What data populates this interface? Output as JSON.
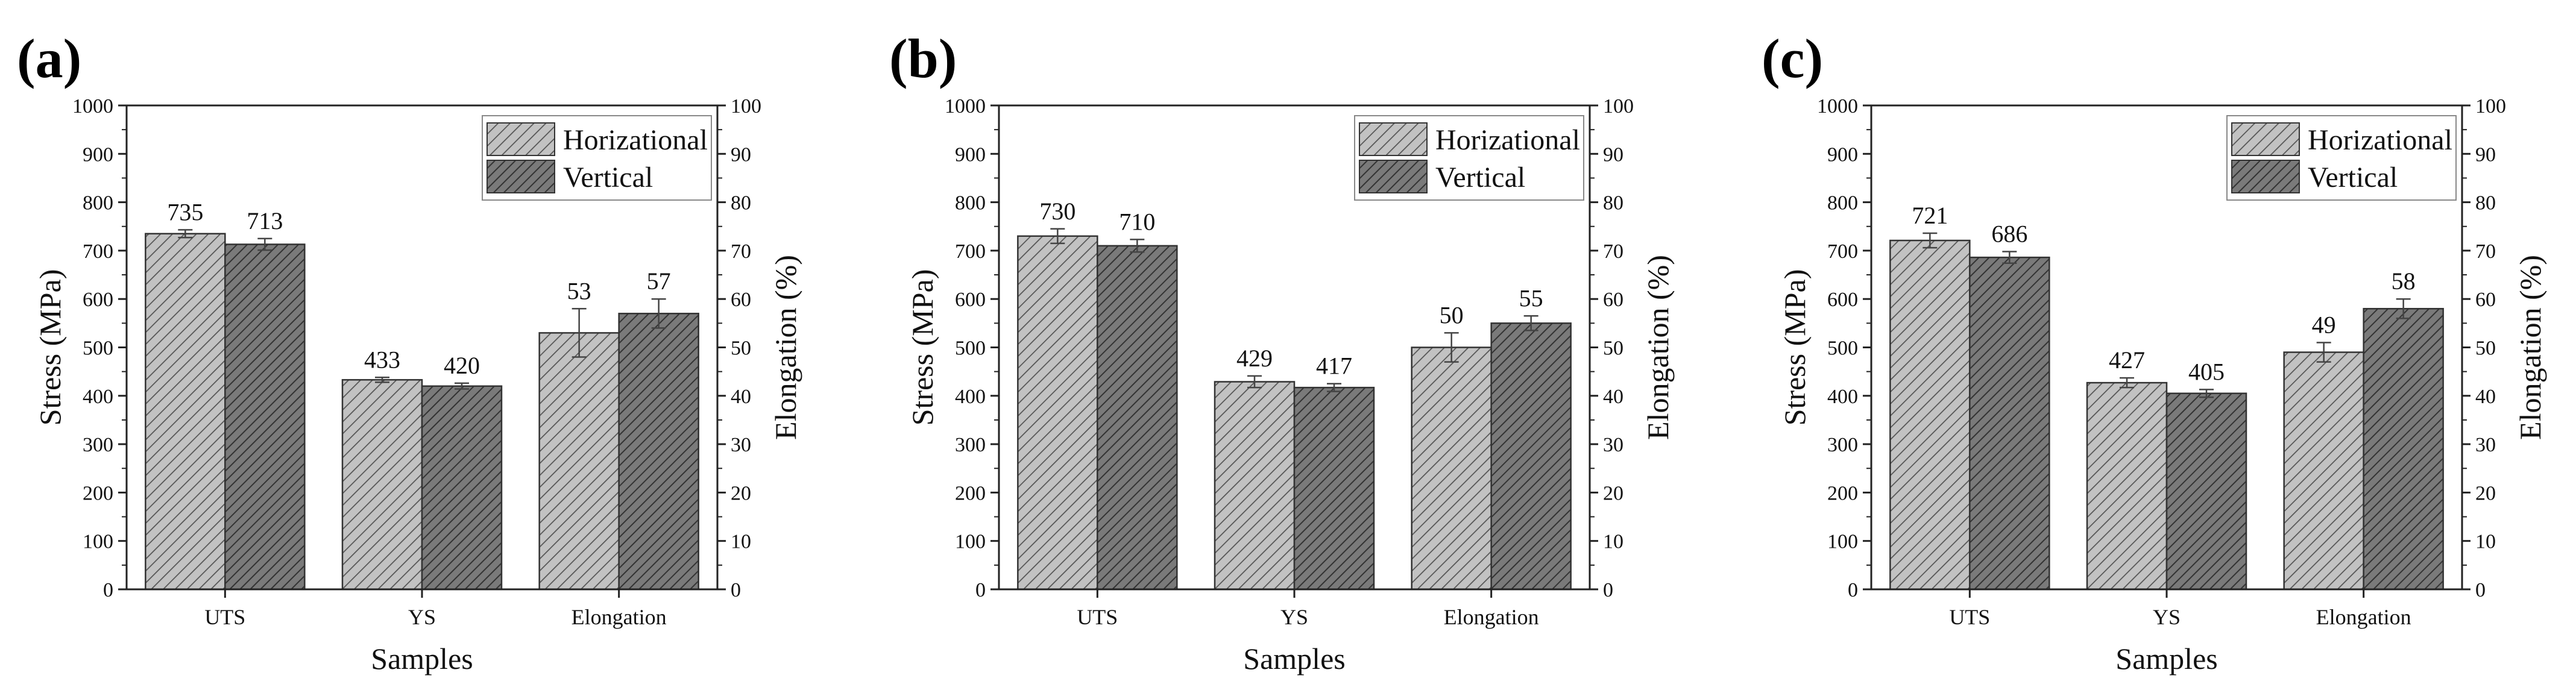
{
  "figure": {
    "colors": {
      "horizontal_fill": "#b4b4b4",
      "vertical_fill": "#6e6e6e",
      "axis": "#222222",
      "background": "#ffffff"
    }
  },
  "chart_data": [
    {
      "type": "bar",
      "panel_label": "(a)",
      "categories": [
        "UTS",
        "YS",
        "Elongation"
      ],
      "series": [
        {
          "name": "Horizational",
          "values": [
            735,
            433,
            53
          ],
          "errors": [
            8,
            5,
            5
          ]
        },
        {
          "name": "Vertical",
          "values": [
            713,
            420,
            57
          ],
          "errors": [
            12,
            6,
            3
          ]
        }
      ],
      "xlabel": "Samples",
      "ylabel": "Stress (MPa)",
      "y2label": "Elongation (%)",
      "ylim": [
        0,
        1000
      ],
      "y2lim": [
        0,
        100
      ],
      "yticks": [
        "0",
        "100",
        "200",
        "300",
        "400",
        "500",
        "600",
        "700",
        "800",
        "900",
        "1000"
      ],
      "y2ticks": [
        "0",
        "10",
        "20",
        "30",
        "40",
        "50",
        "60",
        "70",
        "80",
        "90",
        "100"
      ],
      "legend": "top-right"
    },
    {
      "type": "bar",
      "panel_label": "(b)",
      "categories": [
        "UTS",
        "YS",
        "Elongation"
      ],
      "series": [
        {
          "name": "Horizational",
          "values": [
            730,
            429,
            50
          ],
          "errors": [
            15,
            12,
            3
          ]
        },
        {
          "name": "Vertical",
          "values": [
            710,
            417,
            55
          ],
          "errors": [
            13,
            8,
            1.5
          ]
        }
      ],
      "xlabel": "Samples",
      "ylabel": "Stress (MPa)",
      "y2label": "Elongation (%)",
      "ylim": [
        0,
        1000
      ],
      "y2lim": [
        0,
        100
      ],
      "yticks": [
        "0",
        "100",
        "200",
        "300",
        "400",
        "500",
        "600",
        "700",
        "800",
        "900",
        "1000"
      ],
      "y2ticks": [
        "0",
        "10",
        "20",
        "30",
        "40",
        "50",
        "60",
        "70",
        "80",
        "90",
        "100"
      ],
      "legend": "top-right"
    },
    {
      "type": "bar",
      "panel_label": "(c)",
      "categories": [
        "UTS",
        "YS",
        "Elongation"
      ],
      "series": [
        {
          "name": "Horizational",
          "values": [
            721,
            427,
            49
          ],
          "errors": [
            15,
            10,
            2
          ]
        },
        {
          "name": "Vertical",
          "values": [
            686,
            405,
            58
          ],
          "errors": [
            12,
            8,
            2
          ]
        }
      ],
      "xlabel": "Samples",
      "ylabel": "Stress (MPa)",
      "y2label": "Elongation (%)",
      "ylim": [
        0,
        1000
      ],
      "y2lim": [
        0,
        100
      ],
      "yticks": [
        "0",
        "100",
        "200",
        "300",
        "400",
        "500",
        "600",
        "700",
        "800",
        "900",
        "1000"
      ],
      "y2ticks": [
        "0",
        "10",
        "20",
        "30",
        "40",
        "50",
        "60",
        "70",
        "80",
        "90",
        "100"
      ],
      "legend": "top-right"
    }
  ]
}
